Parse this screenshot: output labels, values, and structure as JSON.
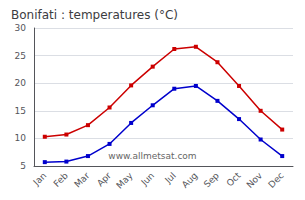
{
  "chart_data": {
    "type": "line",
    "title": "Bonifati : temperatures (°C)",
    "categories": [
      "Jan",
      "Feb",
      "Mar",
      "Apr",
      "May",
      "Jun",
      "Jul",
      "Aug",
      "Sep",
      "Oct",
      "Nov",
      "Dec"
    ],
    "series": [
      {
        "color": "#cc0000",
        "values": [
          10.3,
          10.7,
          12.4,
          15.6,
          19.6,
          23.0,
          26.2,
          26.6,
          23.8,
          19.5,
          15.0,
          11.6
        ]
      },
      {
        "color": "#0000cc",
        "values": [
          5.7,
          5.8,
          6.8,
          9.0,
          12.8,
          16.0,
          19.0,
          19.5,
          16.8,
          13.5,
          9.8,
          6.8
        ]
      }
    ],
    "ylim": [
      5,
      30
    ],
    "yticks": [
      5,
      10,
      15,
      20,
      25,
      30
    ],
    "grid": true,
    "marker": "square",
    "annotations": [
      "www.allmetsat.com"
    ]
  }
}
